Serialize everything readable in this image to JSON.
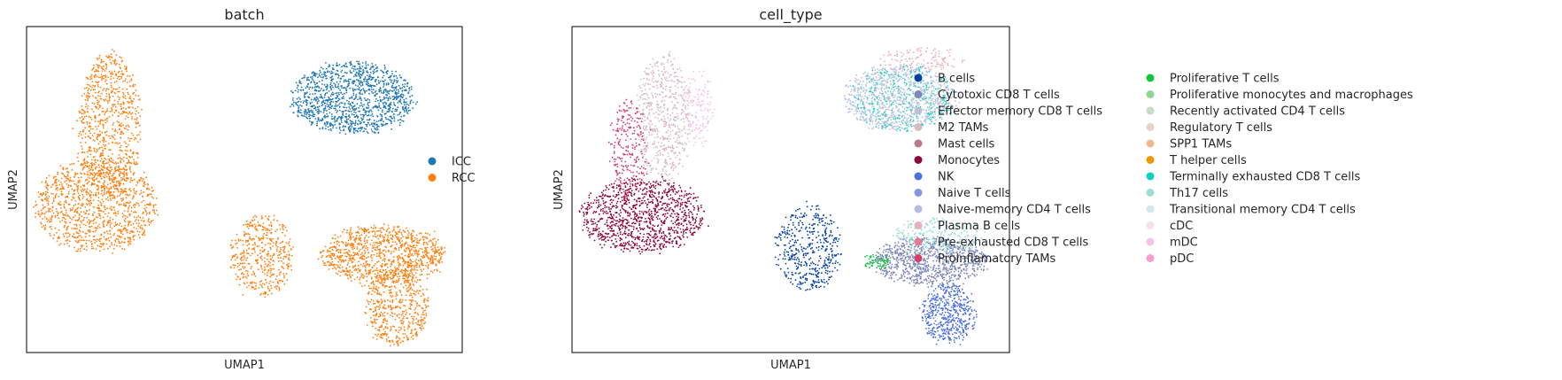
{
  "chart_data": [
    {
      "type": "scatter",
      "title": "batch",
      "xlabel": "UMAP1",
      "ylabel": "UMAP2",
      "grid": false,
      "legend_position": "right",
      "categories": [
        {
          "name": "ICC",
          "color": "#1f77b4"
        },
        {
          "name": "RCC",
          "color": "#ff7f0e"
        }
      ],
      "clusters": [
        {
          "label": "ICC",
          "cx": 0.75,
          "cy": 0.78,
          "rx": 0.14,
          "ry": 0.11,
          "count": 1300
        },
        {
          "label": "RCC",
          "cx": 0.19,
          "cy": 0.7,
          "rx": 0.07,
          "ry": 0.22,
          "count": 800
        },
        {
          "label": "RCC",
          "cx": 0.16,
          "cy": 0.45,
          "rx": 0.14,
          "ry": 0.14,
          "count": 1100
        },
        {
          "label": "RCC",
          "cx": 0.54,
          "cy": 0.3,
          "rx": 0.07,
          "ry": 0.13,
          "count": 450
        },
        {
          "label": "RCC",
          "cx": 0.82,
          "cy": 0.3,
          "rx": 0.14,
          "ry": 0.09,
          "count": 1000
        },
        {
          "label": "RCC",
          "cx": 0.85,
          "cy": 0.14,
          "rx": 0.07,
          "ry": 0.12,
          "count": 500
        }
      ]
    },
    {
      "type": "scatter",
      "title": "cell_type",
      "xlabel": "UMAP1",
      "ylabel": "UMAP2",
      "grid": false,
      "legend_position": "right",
      "categories": [
        {
          "name": "B cells",
          "color": "#023fa5"
        },
        {
          "name": "Cytotoxic CD8 T cells",
          "color": "#7d87b9"
        },
        {
          "name": "Effector memory CD8 T cells",
          "color": "#bec1d4"
        },
        {
          "name": "M2 TAMs",
          "color": "#d6bcc0"
        },
        {
          "name": "Mast cells",
          "color": "#bb7784"
        },
        {
          "name": "Monocytes",
          "color": "#8e063b"
        },
        {
          "name": "NK",
          "color": "#4a6fe3"
        },
        {
          "name": "Naive T cells",
          "color": "#8595e1"
        },
        {
          "name": "Naive-memory CD4 T cells",
          "color": "#b5bbe3"
        },
        {
          "name": "Plasma B cells",
          "color": "#e6afb9"
        },
        {
          "name": "Pre-exhausted CD8 T cells",
          "color": "#e07b91"
        },
        {
          "name": "Proinflamatory TAMs",
          "color": "#d33f6a"
        },
        {
          "name": "Proliferative T cells",
          "color": "#11c638"
        },
        {
          "name": "Proliferative monocytes and macrophages",
          "color": "#8dd593"
        },
        {
          "name": "Recently activated CD4 T cells",
          "color": "#c6dec7"
        },
        {
          "name": "Regulatory T cells",
          "color": "#ead3c6"
        },
        {
          "name": "SPP1 TAMs",
          "color": "#f0b98d"
        },
        {
          "name": "T helper cells",
          "color": "#ef9708"
        },
        {
          "name": "Terminally exhausted CD8 T cells",
          "color": "#0fcfc0"
        },
        {
          "name": "Th17 cells",
          "color": "#9cded6"
        },
        {
          "name": "Transitional memory CD4 T cells",
          "color": "#d5eae7"
        },
        {
          "name": "cDC",
          "color": "#f3e1eb"
        },
        {
          "name": "mDC",
          "color": "#f6c4e1"
        },
        {
          "name": "pDC",
          "color": "#f79cd4"
        }
      ],
      "clusters": [
        {
          "label": "M2 TAMs",
          "cx": 0.21,
          "cy": 0.72,
          "rx": 0.06,
          "ry": 0.2,
          "count": 600
        },
        {
          "label": "Proinflamatory TAMs",
          "cx": 0.13,
          "cy": 0.62,
          "rx": 0.04,
          "ry": 0.15,
          "count": 250
        },
        {
          "label": "mDC",
          "cx": 0.29,
          "cy": 0.75,
          "rx": 0.03,
          "ry": 0.12,
          "count": 150
        },
        {
          "label": "Monocytes",
          "cx": 0.16,
          "cy": 0.42,
          "rx": 0.14,
          "ry": 0.11,
          "count": 1100
        },
        {
          "label": "B cells",
          "cx": 0.54,
          "cy": 0.32,
          "rx": 0.07,
          "ry": 0.13,
          "count": 450
        },
        {
          "label": "Naive-memory CD4 T cells",
          "cx": 0.75,
          "cy": 0.78,
          "rx": 0.13,
          "ry": 0.1,
          "count": 600
        },
        {
          "label": "Terminally exhausted CD8 T cells",
          "cx": 0.76,
          "cy": 0.78,
          "rx": 0.12,
          "ry": 0.1,
          "count": 250
        },
        {
          "label": "Effector memory CD8 T cells",
          "cx": 0.75,
          "cy": 0.79,
          "rx": 0.12,
          "ry": 0.1,
          "count": 250
        },
        {
          "label": "Th17 cells",
          "cx": 0.74,
          "cy": 0.77,
          "rx": 0.11,
          "ry": 0.09,
          "count": 200
        },
        {
          "label": "Plasma B cells",
          "cx": 0.8,
          "cy": 0.9,
          "rx": 0.1,
          "ry": 0.03,
          "count": 120
        },
        {
          "label": "Cytotoxic CD8 T cells",
          "cx": 0.82,
          "cy": 0.28,
          "rx": 0.13,
          "ry": 0.07,
          "count": 900
        },
        {
          "label": "Th17 cells",
          "cx": 0.84,
          "cy": 0.36,
          "rx": 0.1,
          "ry": 0.05,
          "count": 250
        },
        {
          "label": "NK",
          "cx": 0.86,
          "cy": 0.12,
          "rx": 0.06,
          "ry": 0.09,
          "count": 500
        },
        {
          "label": "Proliferative T cells",
          "cx": 0.7,
          "cy": 0.28,
          "rx": 0.03,
          "ry": 0.02,
          "count": 60
        }
      ]
    }
  ]
}
